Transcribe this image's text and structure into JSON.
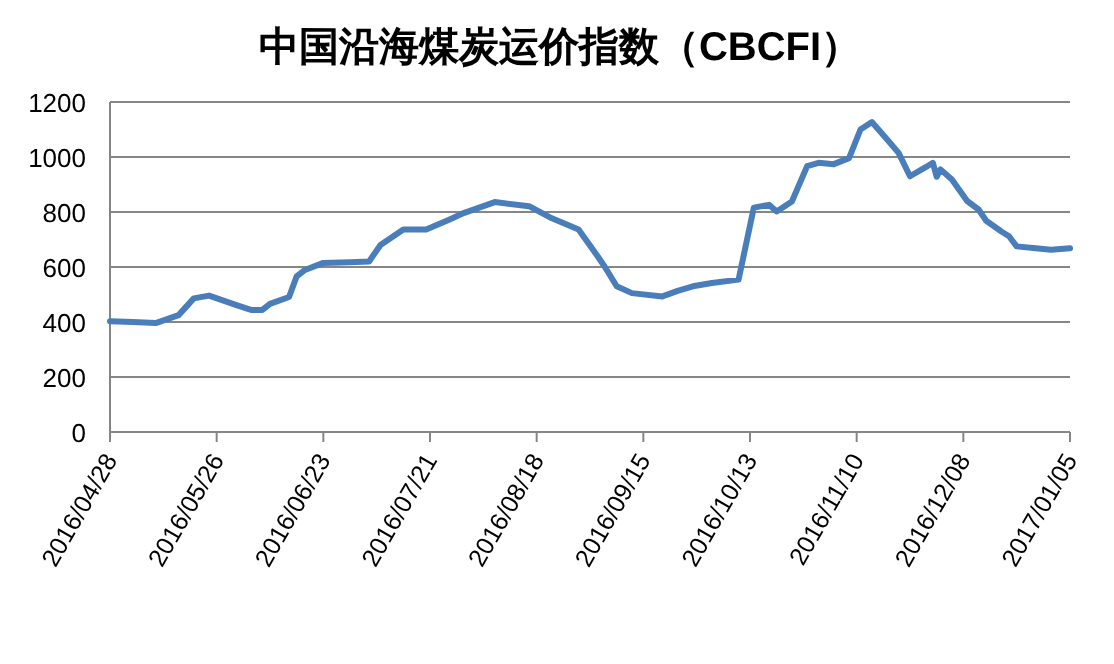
{
  "chart_data": {
    "type": "line",
    "title": "中国沿海煤炭运价指数（CBCFI）",
    "x": [
      "2016-04-28",
      "2016-05-04",
      "2016-05-10",
      "2016-05-16",
      "2016-05-20",
      "2016-05-24",
      "2016-05-31",
      "2016-06-04",
      "2016-06-07",
      "2016-06-09",
      "2016-06-14",
      "2016-06-16",
      "2016-06-18",
      "2016-06-23",
      "2016-06-30",
      "2016-07-05",
      "2016-07-08",
      "2016-07-14",
      "2016-07-20",
      "2016-07-26",
      "2016-07-30",
      "2016-08-07",
      "2016-08-16",
      "2016-08-22",
      "2016-08-29",
      "2016-09-03",
      "2016-09-05",
      "2016-09-08",
      "2016-09-12",
      "2016-09-20",
      "2016-09-24",
      "2016-09-28",
      "2016-10-03",
      "2016-10-10",
      "2016-10-14",
      "2016-10-18",
      "2016-10-20",
      "2016-10-24",
      "2016-10-28",
      "2016-10-31",
      "2016-11-04",
      "2016-11-08",
      "2016-11-11",
      "2016-11-14",
      "2016-11-18",
      "2016-11-21",
      "2016-11-24",
      "2016-11-28",
      "2016-11-30",
      "2016-12-01",
      "2016-12-02",
      "2016-12-05",
      "2016-12-09",
      "2016-12-12",
      "2016-12-14",
      "2016-12-18",
      "2016-12-20",
      "2016-12-22",
      "2016-12-27",
      "2016-12-31",
      "2017-01-05"
    ],
    "series": [
      {
        "color": "#4a7ebb",
        "values": [
          403,
          400,
          396,
          425,
          486,
          496,
          462,
          444,
          444,
          466,
          491,
          566,
          588,
          615,
          617,
          620,
          680,
          736,
          736,
          772,
          797,
          836,
          821,
          777,
          736,
          639,
          598,
          530,
          505,
          493,
          513,
          530,
          542,
          554,
          816,
          826,
          802,
          838,
          967,
          979,
          974,
          996,
          1100,
          1127,
          1064,
          1015,
          930,
          962,
          979,
          928,
          955,
          918,
          840,
          809,
          768,
          729,
          712,
          675,
          668,
          663,
          668
        ]
      }
    ],
    "xlim": [
      "2016-04-28",
      "2017-01-05"
    ],
    "xticks": [
      {
        "value": "2016-04-28",
        "label": "2016/04/28"
      },
      {
        "value": "2016-05-26",
        "label": "2016/05/26"
      },
      {
        "value": "2016-06-23",
        "label": "2016/06/23"
      },
      {
        "value": "2016-07-21",
        "label": "2016/07/21"
      },
      {
        "value": "2016-08-18",
        "label": "2016/08/18"
      },
      {
        "value": "2016-09-15",
        "label": "2016/09/15"
      },
      {
        "value": "2016-10-13",
        "label": "2016/10/13"
      },
      {
        "value": "2016-11-10",
        "label": "2016/11/10"
      },
      {
        "value": "2016-12-08",
        "label": "2016/12/08"
      },
      {
        "value": "2017-01-05",
        "label": "2017/01/05"
      }
    ],
    "ylim": [
      0,
      1200
    ],
    "yticks": [
      0,
      200,
      400,
      600,
      800,
      1000,
      1200
    ],
    "grid": "y"
  }
}
